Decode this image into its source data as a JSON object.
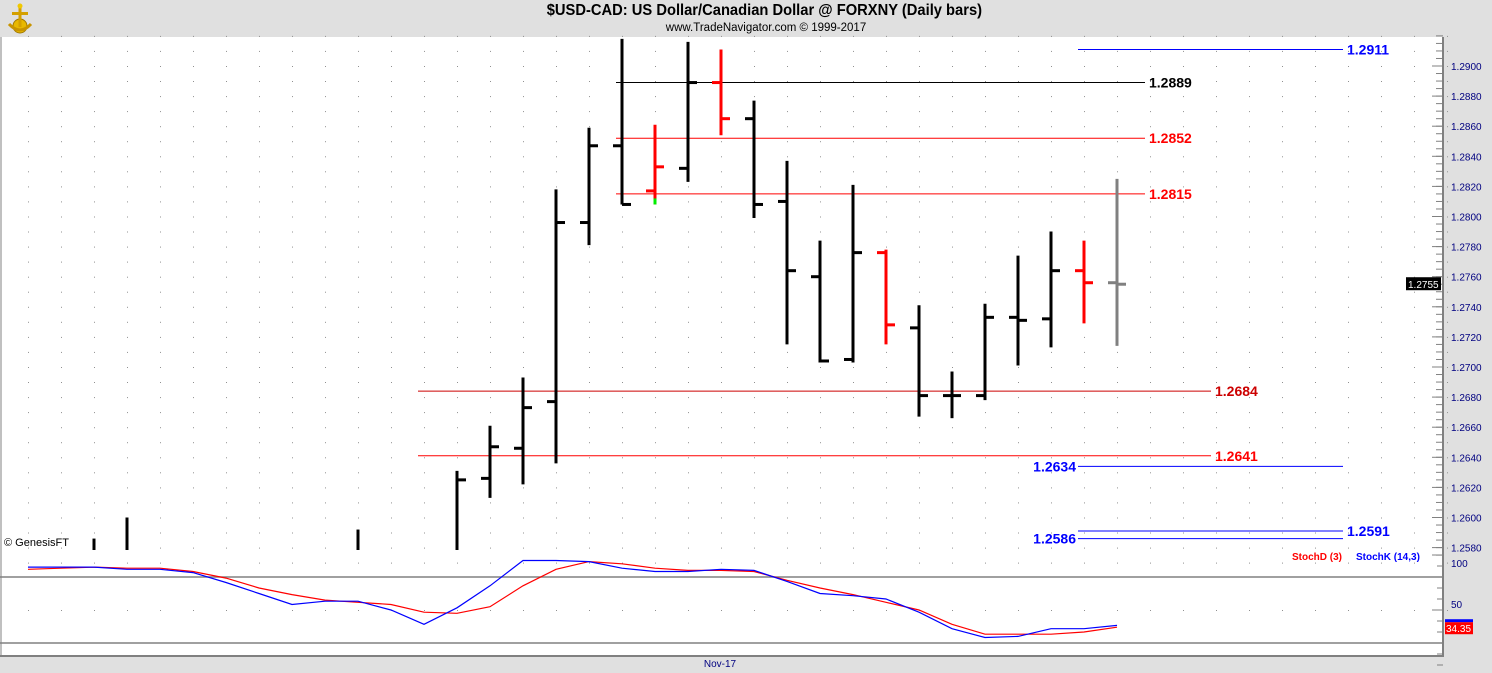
{
  "header": {
    "title": "$USD-CAD:  US Dollar/Canadian Dollar @ FORXNY  (Daily bars)",
    "subtitle": "www.TradeNavigator.com © 1999-2017"
  },
  "copyright": "© GenesisFT",
  "chart_data": [
    {
      "type": "ohlc-bar",
      "ylim": [
        1.2575,
        1.292
      ],
      "y_ticks": [
        "1.2580",
        "1.2600",
        "1.2620",
        "1.2640",
        "1.2660",
        "1.2680",
        "1.2700",
        "1.2720",
        "1.2740",
        "1.2760",
        "1.2780",
        "1.2800",
        "1.2820",
        "1.2840",
        "1.2860",
        "1.2880",
        "1.2900"
      ],
      "x_tick_labels": [
        {
          "label": "Nov-17",
          "index": 21
        }
      ],
      "grid": "dotted",
      "last_price": "1.2755",
      "colors": {
        "up": "#000000",
        "down": "#ff0000",
        "current": "#808080",
        "low_marker": "#00ee00"
      },
      "bars": [
        {
          "i": 2,
          "o": null,
          "h": 1.2586,
          "l": null,
          "c": null,
          "color": "up"
        },
        {
          "i": 3,
          "o": null,
          "h": 1.26,
          "l": null,
          "c": null,
          "color": "up"
        },
        {
          "i": 10,
          "o": null,
          "h": 1.2592,
          "l": null,
          "c": null,
          "color": "up"
        },
        {
          "i": 13,
          "o": null,
          "h": 1.2631,
          "l": null,
          "c": 1.2625,
          "color": "up"
        },
        {
          "i": 14,
          "o": 1.2626,
          "h": 1.2661,
          "l": 1.2613,
          "c": 1.2647,
          "color": "up"
        },
        {
          "i": 15,
          "o": 1.2646,
          "h": 1.2693,
          "l": 1.2622,
          "c": 1.2673,
          "color": "up"
        },
        {
          "i": 16,
          "o": 1.2677,
          "h": 1.2818,
          "l": 1.2636,
          "c": 1.2796,
          "color": "up"
        },
        {
          "i": 17,
          "o": 1.2796,
          "h": 1.2859,
          "l": 1.2781,
          "c": 1.2847,
          "color": "up"
        },
        {
          "i": 18,
          "o": 1.2847,
          "h": 1.2918,
          "l": 1.2808,
          "c": 1.2808,
          "color": "up"
        },
        {
          "i": 19,
          "o": 1.2817,
          "h": 1.2861,
          "l": 1.2808,
          "c": 1.2833,
          "color": "down",
          "low_marker": 1.2812
        },
        {
          "i": 20,
          "o": 1.2832,
          "h": 1.2916,
          "l": 1.2823,
          "c": 1.2889,
          "color": "up"
        },
        {
          "i": 21,
          "o": 1.2889,
          "h": 1.2911,
          "l": 1.2854,
          "c": 1.2865,
          "color": "down"
        },
        {
          "i": 22,
          "o": 1.2865,
          "h": 1.2877,
          "l": 1.2799,
          "c": 1.2808,
          "color": "up"
        },
        {
          "i": 23,
          "o": 1.281,
          "h": 1.2837,
          "l": 1.2715,
          "c": 1.2764,
          "color": "up"
        },
        {
          "i": 24,
          "o": 1.276,
          "h": 1.2784,
          "l": 1.2703,
          "c": 1.2704,
          "color": "up"
        },
        {
          "i": 25,
          "o": 1.2705,
          "h": 1.2821,
          "l": 1.2703,
          "c": 1.2776,
          "color": "up"
        },
        {
          "i": 26,
          "o": 1.2776,
          "h": 1.2778,
          "l": 1.2715,
          "c": 1.2728,
          "color": "down"
        },
        {
          "i": 27,
          "o": 1.2726,
          "h": 1.2741,
          "l": 1.2667,
          "c": 1.2681,
          "color": "up"
        },
        {
          "i": 28,
          "o": 1.2681,
          "h": 1.2697,
          "l": 1.2666,
          "c": 1.2681,
          "color": "up"
        },
        {
          "i": 29,
          "o": 1.2681,
          "h": 1.2742,
          "l": 1.2678,
          "c": 1.2733,
          "color": "up"
        },
        {
          "i": 30,
          "o": 1.2733,
          "h": 1.2774,
          "l": 1.2701,
          "c": 1.2731,
          "color": "up"
        },
        {
          "i": 31,
          "o": 1.2732,
          "h": 1.279,
          "l": 1.2713,
          "c": 1.2764,
          "color": "up"
        },
        {
          "i": 32,
          "o": 1.2764,
          "h": 1.2784,
          "l": 1.2729,
          "c": 1.2756,
          "color": "down"
        },
        {
          "i": 33,
          "o": 1.2756,
          "h": 1.2825,
          "l": 1.2714,
          "c": 1.2755,
          "color": "current"
        }
      ],
      "levels": [
        {
          "label": "1.2911",
          "value": 1.2911,
          "from": 32,
          "to": 40,
          "color": "#0000ff",
          "label_side": "right"
        },
        {
          "label": "1.2889",
          "value": 1.2889,
          "from": 18,
          "to": 34,
          "color": "#000000",
          "label_side": "right"
        },
        {
          "label": "1.2852",
          "value": 1.2852,
          "from": 18,
          "to": 34,
          "color": "#ff0000",
          "label_side": "right"
        },
        {
          "label": "1.2815",
          "value": 1.2815,
          "from": 18,
          "to": 34,
          "color": "#ff0000",
          "label_side": "right"
        },
        {
          "label": "1.2684",
          "value": 1.2684,
          "from": 12,
          "to": 36,
          "color": "#cc0000",
          "label_side": "right"
        },
        {
          "label": "1.2641",
          "value": 1.2641,
          "from": 12,
          "to": 36,
          "color": "#ff0000",
          "label_side": "right"
        },
        {
          "label": "1.2634",
          "value": 1.2634,
          "from": 32,
          "to": 40,
          "color": "#0000ff",
          "label_side": "left"
        },
        {
          "label": "1.2591",
          "value": 1.2591,
          "from": 32,
          "to": 40,
          "color": "#0000ff",
          "label_side": "right"
        },
        {
          "label": "1.2586",
          "value": 1.2586,
          "from": 32,
          "to": 40,
          "color": "#0000ff",
          "label_side": "left"
        }
      ]
    },
    {
      "type": "line",
      "ylim": [
        0,
        100
      ],
      "y_ticks": [
        "100",
        "50"
      ],
      "reference_lines": [
        80,
        20
      ],
      "last_value": "34.35",
      "series": [
        {
          "name": "StochD (3)",
          "color": "#ff0000",
          "values": [
            87,
            88,
            89,
            88,
            88,
            85,
            79,
            70,
            64,
            59,
            57,
            55,
            48,
            47,
            53,
            72,
            87,
            94,
            92,
            88,
            86,
            86,
            85,
            77,
            70,
            64,
            57,
            50,
            37,
            28,
            28,
            28,
            30,
            34.35
          ]
        },
        {
          "name": "StochK (14,3)",
          "color": "#0000ff",
          "values": [
            89,
            89,
            89,
            87,
            87,
            84,
            75,
            65,
            55,
            58,
            58,
            50,
            37,
            52,
            72,
            95,
            95,
            94,
            88,
            85,
            85,
            87,
            86,
            76,
            65,
            63,
            60,
            48,
            33,
            25,
            26,
            33,
            33,
            36
          ]
        }
      ]
    }
  ]
}
